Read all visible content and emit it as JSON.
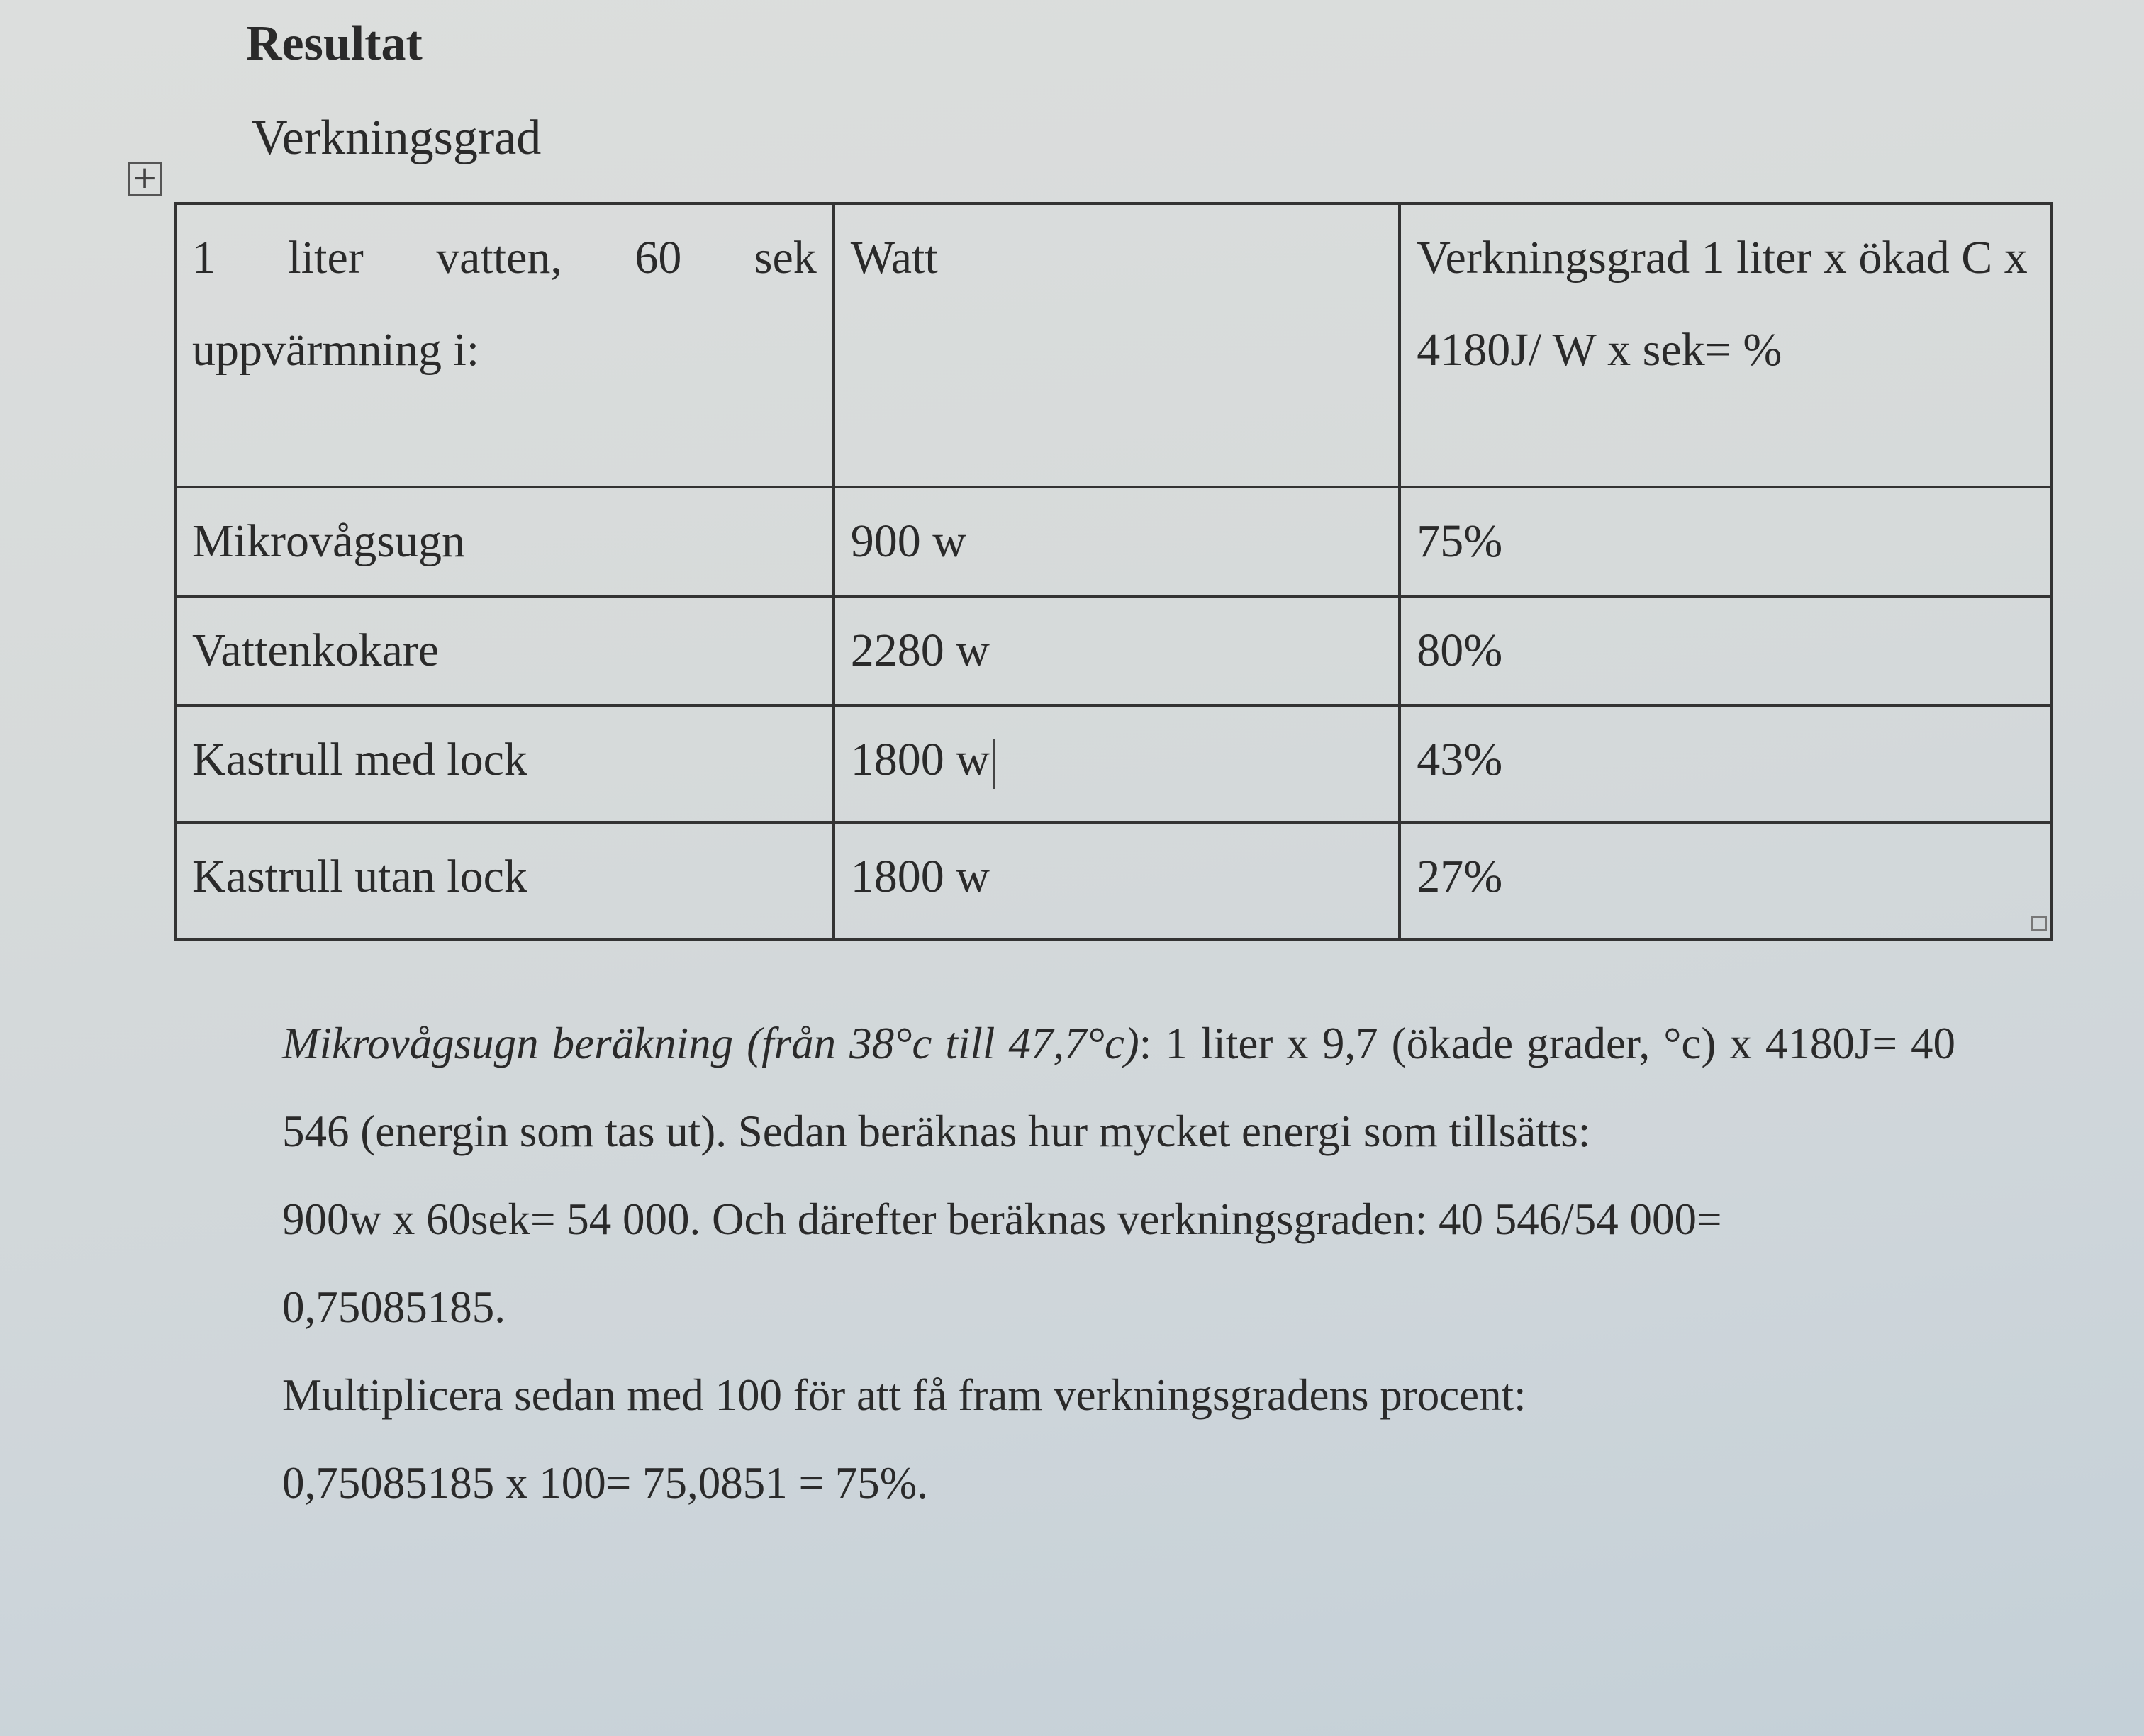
{
  "headings": {
    "section": "Resultat",
    "subsection": "Verkningsgrad"
  },
  "table": {
    "header": [
      "1 liter vatten, 60 sek uppvärmning i:",
      "Watt",
      "Verkningsgrad 1 liter x ökad C x 4180J/ W x sek= %"
    ],
    "rows": [
      [
        "Mikrovågsugn",
        "900 w",
        "75%"
      ],
      [
        "Vattenkokare",
        "2280 w",
        "80%"
      ],
      [
        "Kastrull med lock",
        "1800 w",
        "43%"
      ],
      [
        "Kastrull utan lock",
        "1800 w",
        "27%"
      ]
    ]
  },
  "body": {
    "intro_italic": "Mikrovågsugn beräkning (från 38°c till 47,7°c)",
    "line1_rest": ": 1 liter x 9,7 (ökade grader, °c) x 4180J= 40 546 (energin som tas ut). Sedan beräknas hur mycket energi som tillsätts:",
    "line2": "900w x 60sek= 54 000. Och därefter beräknas verkningsgraden: 40 546/54 000= 0,75085185.",
    "line3": "Multiplicera sedan med 100 för att få fram verkningsgradens procent:",
    "line4": "0,75085185 x 100= 75,0851 = 75%."
  },
  "icons": {
    "table_move": "move-handle-icon",
    "table_resize": "resize-handle-icon",
    "cursor": "text-cursor-icon"
  }
}
